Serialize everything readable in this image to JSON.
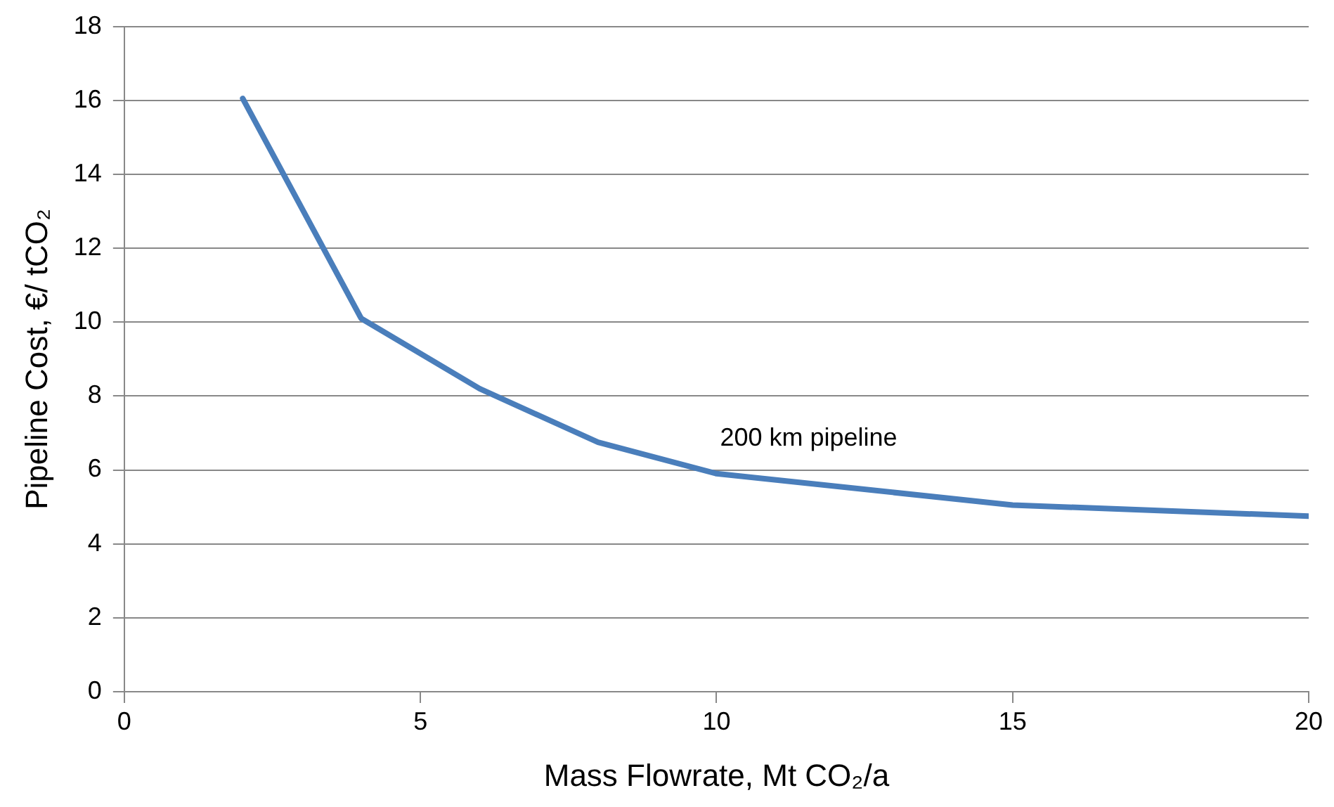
{
  "chart_data": {
    "type": "line",
    "xlabel": "Mass Flowrate, Mt CO₂/a",
    "ylabel": "Pipeline Cost, €/ tCO₂",
    "x": [
      2,
      4,
      6,
      8,
      10,
      15,
      20
    ],
    "series": [
      {
        "color": "#4a7ebb",
        "values": [
          16.05,
          10.1,
          8.2,
          6.75,
          5.9,
          5.05,
          4.75
        ]
      }
    ],
    "xlim": [
      0,
      20
    ],
    "xticks": [
      0,
      5,
      10,
      15,
      20
    ],
    "ylim": [
      0,
      18
    ],
    "yticks": [
      0,
      2,
      4,
      6,
      8,
      10,
      12,
      14,
      16,
      18
    ],
    "grid": "y",
    "legend": false,
    "marker": "none",
    "line_style": "solid",
    "annotations": [
      "200 km pipeline"
    ]
  }
}
